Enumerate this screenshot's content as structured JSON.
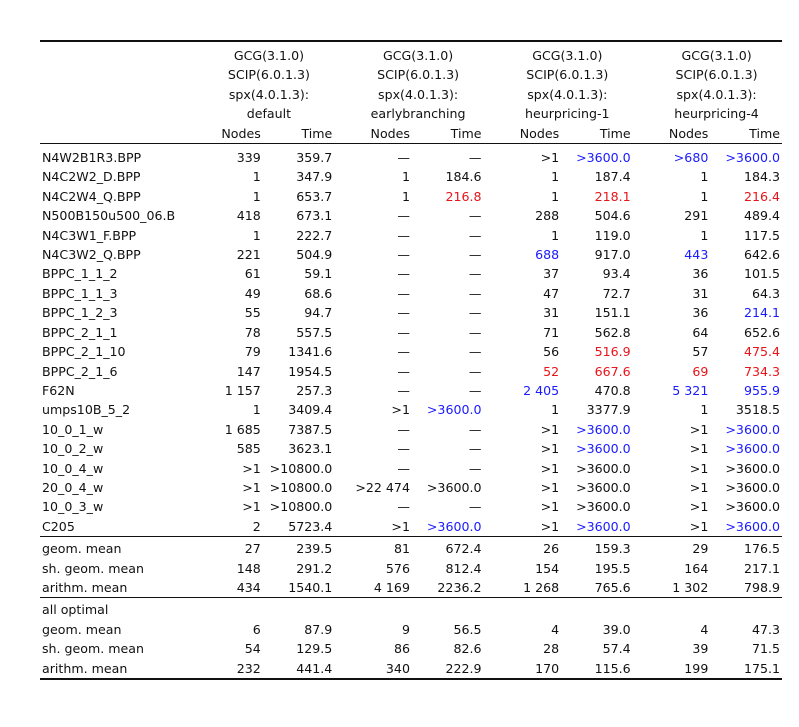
{
  "header": {
    "groups": [
      {
        "l1": "GCG(3.1.0)",
        "l2": "SCIP(6.0.1.3)",
        "l3": "spx(4.0.1.3):",
        "l4": "default"
      },
      {
        "l1": "GCG(3.1.0)",
        "l2": "SCIP(6.0.1.3)",
        "l3": "spx(4.0.1.3):",
        "l4": "earlybranching"
      },
      {
        "l1": "GCG(3.1.0)",
        "l2": "SCIP(6.0.1.3)",
        "l3": "spx(4.0.1.3):",
        "l4": "heurpricing-1"
      },
      {
        "l1": "GCG(3.1.0)",
        "l2": "SCIP(6.0.1.3)",
        "l3": "spx(4.0.1.3):",
        "l4": "heurpricing-4"
      }
    ],
    "nodes_label": "Nodes",
    "time_label": "Time"
  },
  "colors": {
    "blue": "#1a1aff",
    "red": "#e8141a"
  },
  "rows": [
    {
      "name": "N4W2B1R3.BPP",
      "c": [
        [
          "339",
          ""
        ],
        [
          "359.7",
          ""
        ],
        [
          "—",
          ""
        ],
        [
          "—",
          ""
        ],
        [
          ">1",
          ""
        ],
        [
          ">3600.0",
          "blue"
        ],
        [
          ">680",
          "blue"
        ],
        [
          ">3600.0",
          "blue"
        ]
      ]
    },
    {
      "name": "N4C2W2_D.BPP",
      "c": [
        [
          "1",
          ""
        ],
        [
          "347.9",
          ""
        ],
        [
          "1",
          ""
        ],
        [
          "184.6",
          ""
        ],
        [
          "1",
          ""
        ],
        [
          "187.4",
          ""
        ],
        [
          "1",
          ""
        ],
        [
          "184.3",
          ""
        ]
      ]
    },
    {
      "name": "N4C2W4_Q.BPP",
      "c": [
        [
          "1",
          ""
        ],
        [
          "653.7",
          ""
        ],
        [
          "1",
          ""
        ],
        [
          "216.8",
          "red"
        ],
        [
          "1",
          ""
        ],
        [
          "218.1",
          "red"
        ],
        [
          "1",
          ""
        ],
        [
          "216.4",
          "red"
        ]
      ]
    },
    {
      "name": "N500B150u500_06.B",
      "c": [
        [
          "418",
          ""
        ],
        [
          "673.1",
          ""
        ],
        [
          "—",
          ""
        ],
        [
          "—",
          ""
        ],
        [
          "288",
          ""
        ],
        [
          "504.6",
          ""
        ],
        [
          "291",
          ""
        ],
        [
          "489.4",
          ""
        ]
      ]
    },
    {
      "name": "N4C3W1_F.BPP",
      "c": [
        [
          "1",
          ""
        ],
        [
          "222.7",
          ""
        ],
        [
          "—",
          ""
        ],
        [
          "—",
          ""
        ],
        [
          "1",
          ""
        ],
        [
          "119.0",
          ""
        ],
        [
          "1",
          ""
        ],
        [
          "117.5",
          ""
        ]
      ]
    },
    {
      "name": "N4C3W2_Q.BPP",
      "c": [
        [
          "221",
          ""
        ],
        [
          "504.9",
          ""
        ],
        [
          "—",
          ""
        ],
        [
          "—",
          ""
        ],
        [
          "688",
          "blue"
        ],
        [
          "917.0",
          ""
        ],
        [
          "443",
          "blue"
        ],
        [
          "642.6",
          ""
        ]
      ]
    },
    {
      "name": "BPPC_1_1_2",
      "c": [
        [
          "61",
          ""
        ],
        [
          "59.1",
          ""
        ],
        [
          "—",
          ""
        ],
        [
          "—",
          ""
        ],
        [
          "37",
          ""
        ],
        [
          "93.4",
          ""
        ],
        [
          "36",
          ""
        ],
        [
          "101.5",
          ""
        ]
      ]
    },
    {
      "name": "BPPC_1_1_3",
      "c": [
        [
          "49",
          ""
        ],
        [
          "68.6",
          ""
        ],
        [
          "—",
          ""
        ],
        [
          "—",
          ""
        ],
        [
          "47",
          ""
        ],
        [
          "72.7",
          ""
        ],
        [
          "31",
          ""
        ],
        [
          "64.3",
          ""
        ]
      ]
    },
    {
      "name": "BPPC_1_2_3",
      "c": [
        [
          "55",
          ""
        ],
        [
          "94.7",
          ""
        ],
        [
          "—",
          ""
        ],
        [
          "—",
          ""
        ],
        [
          "31",
          ""
        ],
        [
          "151.1",
          ""
        ],
        [
          "36",
          ""
        ],
        [
          "214.1",
          "blue"
        ]
      ]
    },
    {
      "name": "BPPC_2_1_1",
      "c": [
        [
          "78",
          ""
        ],
        [
          "557.5",
          ""
        ],
        [
          "—",
          ""
        ],
        [
          "—",
          ""
        ],
        [
          "71",
          ""
        ],
        [
          "562.8",
          ""
        ],
        [
          "64",
          ""
        ],
        [
          "652.6",
          ""
        ]
      ]
    },
    {
      "name": "BPPC_2_1_10",
      "c": [
        [
          "79",
          ""
        ],
        [
          "1341.6",
          ""
        ],
        [
          "—",
          ""
        ],
        [
          "—",
          ""
        ],
        [
          "56",
          ""
        ],
        [
          "516.9",
          "red"
        ],
        [
          "57",
          ""
        ],
        [
          "475.4",
          "red"
        ]
      ]
    },
    {
      "name": "BPPC_2_1_6",
      "c": [
        [
          "147",
          ""
        ],
        [
          "1954.5",
          ""
        ],
        [
          "—",
          ""
        ],
        [
          "—",
          ""
        ],
        [
          "52",
          "red"
        ],
        [
          "667.6",
          "red"
        ],
        [
          "69",
          "red"
        ],
        [
          "734.3",
          "red"
        ]
      ]
    },
    {
      "name": "F62N",
      "c": [
        [
          "1 157",
          ""
        ],
        [
          "257.3",
          ""
        ],
        [
          "—",
          ""
        ],
        [
          "—",
          ""
        ],
        [
          "2 405",
          "blue"
        ],
        [
          "470.8",
          ""
        ],
        [
          "5 321",
          "blue"
        ],
        [
          "955.9",
          "blue"
        ]
      ]
    },
    {
      "name": "umps10B_5_2",
      "c": [
        [
          "1",
          ""
        ],
        [
          "3409.4",
          ""
        ],
        [
          ">1",
          ""
        ],
        [
          ">3600.0",
          "blue"
        ],
        [
          "1",
          ""
        ],
        [
          "3377.9",
          ""
        ],
        [
          "1",
          ""
        ],
        [
          "3518.5",
          ""
        ]
      ]
    },
    {
      "name": "10_0_1_w",
      "c": [
        [
          "1 685",
          ""
        ],
        [
          "7387.5",
          ""
        ],
        [
          "—",
          ""
        ],
        [
          "—",
          ""
        ],
        [
          ">1",
          ""
        ],
        [
          ">3600.0",
          "blue"
        ],
        [
          ">1",
          ""
        ],
        [
          ">3600.0",
          "blue"
        ]
      ]
    },
    {
      "name": "10_0_2_w",
      "c": [
        [
          "585",
          ""
        ],
        [
          "3623.1",
          ""
        ],
        [
          "—",
          ""
        ],
        [
          "—",
          ""
        ],
        [
          ">1",
          ""
        ],
        [
          ">3600.0",
          "blue"
        ],
        [
          ">1",
          ""
        ],
        [
          ">3600.0",
          "blue"
        ]
      ]
    },
    {
      "name": "10_0_4_w",
      "c": [
        [
          ">1",
          ""
        ],
        [
          ">10800.0",
          ""
        ],
        [
          "—",
          ""
        ],
        [
          "—",
          ""
        ],
        [
          ">1",
          ""
        ],
        [
          ">3600.0",
          ""
        ],
        [
          ">1",
          ""
        ],
        [
          ">3600.0",
          ""
        ]
      ]
    },
    {
      "name": "20_0_4_w",
      "c": [
        [
          ">1",
          ""
        ],
        [
          ">10800.0",
          ""
        ],
        [
          ">22 474",
          ""
        ],
        [
          ">3600.0",
          ""
        ],
        [
          ">1",
          ""
        ],
        [
          ">3600.0",
          ""
        ],
        [
          ">1",
          ""
        ],
        [
          ">3600.0",
          ""
        ]
      ]
    },
    {
      "name": "10_0_3_w",
      "c": [
        [
          ">1",
          ""
        ],
        [
          ">10800.0",
          ""
        ],
        [
          "—",
          ""
        ],
        [
          "—",
          ""
        ],
        [
          ">1",
          ""
        ],
        [
          ">3600.0",
          ""
        ],
        [
          ">1",
          ""
        ],
        [
          ">3600.0",
          ""
        ]
      ]
    },
    {
      "name": "C205",
      "c": [
        [
          "2",
          ""
        ],
        [
          "5723.4",
          ""
        ],
        [
          ">1",
          ""
        ],
        [
          ">3600.0",
          "blue"
        ],
        [
          ">1",
          ""
        ],
        [
          ">3600.0",
          "blue"
        ],
        [
          ">1",
          ""
        ],
        [
          ">3600.0",
          "blue"
        ]
      ]
    }
  ],
  "summary": [
    {
      "name": "geom. mean",
      "c": [
        "27",
        "239.5",
        "81",
        "672.4",
        "26",
        "159.3",
        "29",
        "176.5"
      ]
    },
    {
      "name": "sh. geom. mean",
      "c": [
        "148",
        "291.2",
        "576",
        "812.4",
        "154",
        "195.5",
        "164",
        "217.1"
      ]
    },
    {
      "name": "arithm. mean",
      "c": [
        "434",
        "1540.1",
        "4 169",
        "2236.2",
        "1 268",
        "765.6",
        "1 302",
        "798.9"
      ]
    }
  ],
  "optimal": {
    "title": "all optimal",
    "rows": [
      {
        "name": "geom. mean",
        "c": [
          "6",
          "87.9",
          "9",
          "56.5",
          "4",
          "39.0",
          "4",
          "47.3"
        ]
      },
      {
        "name": "sh. geom. mean",
        "c": [
          "54",
          "129.5",
          "86",
          "82.6",
          "28",
          "57.4",
          "39",
          "71.5"
        ]
      },
      {
        "name": "arithm. mean",
        "c": [
          "232",
          "441.4",
          "340",
          "222.9",
          "170",
          "115.6",
          "199",
          "175.1"
        ]
      }
    ]
  }
}
